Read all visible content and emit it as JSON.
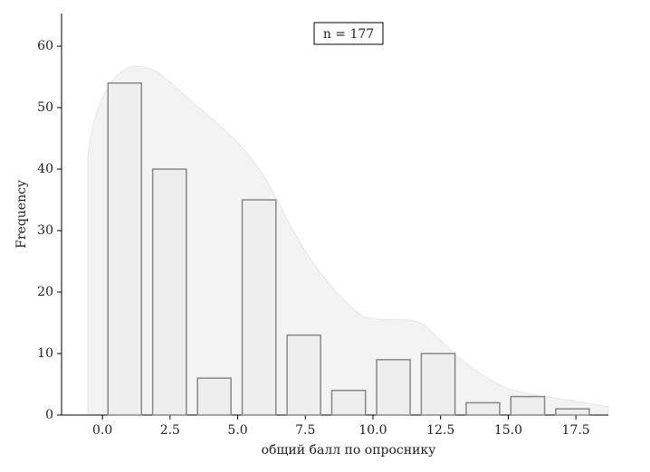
{
  "chart_data": {
    "type": "histogram",
    "x_label": "общий балл по опроснику",
    "y_label": "Frequency",
    "annotation": "n = 177",
    "bins": [
      0,
      1.65,
      3.31,
      4.96,
      6.62,
      8.27,
      9.93,
      11.58,
      13.24,
      14.89,
      16.55,
      18.2
    ],
    "values": [
      54,
      40,
      6,
      35,
      13,
      4,
      9,
      10,
      2,
      3,
      1
    ],
    "color": "#eeeeee",
    "edge_color": "#888888",
    "xlim": [
      -1.51,
      18.7
    ],
    "ylim": [
      0,
      65.3
    ],
    "xticks": [
      {
        "value": 0,
        "label": "0.0"
      },
      2.5,
      {
        "value": 5,
        "label": "5.0"
      },
      7.5,
      {
        "value": 10,
        "label": "10.0"
      },
      12.5,
      {
        "value": 15,
        "label": "15.0"
      },
      17.5
    ],
    "yticks": [
      0,
      10,
      20,
      30,
      40,
      50,
      60
    ]
  }
}
